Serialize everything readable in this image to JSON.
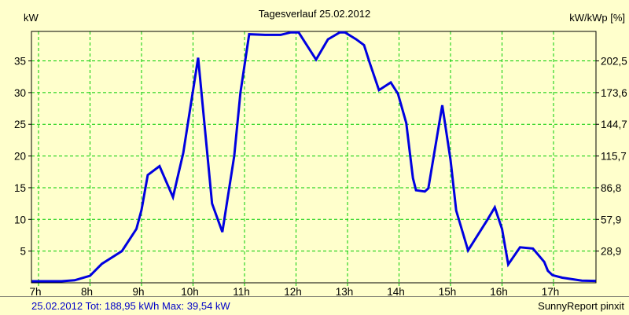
{
  "window": {
    "background_color": "#FFFFCC"
  },
  "header": {
    "title": "Tagesverlauf 25.02.2012",
    "left_axis_unit": "kW",
    "right_axis_unit": "kW/kWp [%]"
  },
  "status": {
    "left": "25.02.2012 Tot: 188,95 kWh Max: 39,54 kW",
    "right": "SunnyReport pinxit"
  },
  "chart_data": {
    "type": "line",
    "title": "Tagesverlauf 25.02.2012",
    "ylabel_left": "kW",
    "ylabel_right": "kW/kWp [%]",
    "date": "25.02.2012",
    "total_kwh": "188,95",
    "max_kw": "39,54",
    "grid": true,
    "line_color": "#0000E0",
    "grid_color": "#00CC00",
    "xlim": [
      6.86,
      17.83
    ],
    "ylim": [
      0,
      39.65
    ],
    "x_ticks": [
      {
        "t": 7,
        "label": "7h"
      },
      {
        "t": 8,
        "label": "8h"
      },
      {
        "t": 9,
        "label": "9h"
      },
      {
        "t": 10,
        "label": "10h"
      },
      {
        "t": 11,
        "label": "11h"
      },
      {
        "t": 12,
        "label": "12h"
      },
      {
        "t": 13,
        "label": "13h"
      },
      {
        "t": 14,
        "label": "14h"
      },
      {
        "t": 15,
        "label": "15h"
      },
      {
        "t": 16,
        "label": "16h"
      },
      {
        "t": 17,
        "label": "17h"
      }
    ],
    "y_ticks": [
      {
        "kw": 5,
        "left_label": "5",
        "right_label": "28,9"
      },
      {
        "kw": 10,
        "left_label": "10",
        "right_label": "57,9"
      },
      {
        "kw": 15,
        "left_label": "15",
        "right_label": "86,8"
      },
      {
        "kw": 20,
        "left_label": "20",
        "right_label": "115,7"
      },
      {
        "kw": 25,
        "left_label": "25",
        "right_label": "144,7"
      },
      {
        "kw": 30,
        "left_label": "30",
        "right_label": "173,6"
      },
      {
        "kw": 35,
        "left_label": "35",
        "right_label": "202,5"
      }
    ],
    "series": [
      {
        "x": [
          6.87,
          7.45,
          7.7,
          8.0,
          8.23,
          8.62,
          8.9,
          9.0,
          9.12,
          9.35,
          9.61,
          9.81,
          10.1,
          10.37,
          10.57,
          10.8,
          10.92,
          11.09,
          11.4,
          11.7,
          11.9,
          12.05,
          12.39,
          12.62,
          12.85,
          12.95,
          13.17,
          13.32,
          13.43,
          13.61,
          13.84,
          13.98,
          14.14,
          14.27,
          14.33,
          14.5,
          14.57,
          14.84,
          15.0,
          15.11,
          15.34,
          15.72,
          15.86,
          16.0,
          16.12,
          16.35,
          16.6,
          16.82,
          16.89,
          16.98,
          17.17,
          17.55,
          17.82
        ],
        "y": [
          0.25,
          0.25,
          0.4,
          1.1,
          3.0,
          5.0,
          8.5,
          11.5,
          17.0,
          18.4,
          13.5,
          20.5,
          35.5,
          12.5,
          8.0,
          20.0,
          30.0,
          39.2,
          39.1,
          39.1,
          39.5,
          39.5,
          35.2,
          38.4,
          39.5,
          39.5,
          38.4,
          37.5,
          34.7,
          30.4,
          31.6,
          29.8,
          25.2,
          16.5,
          14.6,
          14.4,
          14.9,
          28.0,
          19.4,
          11.4,
          5.1,
          10.0,
          11.9,
          8.5,
          2.9,
          5.6,
          5.4,
          3.3,
          1.9,
          1.2,
          0.8,
          0.35,
          0.3
        ]
      }
    ]
  }
}
